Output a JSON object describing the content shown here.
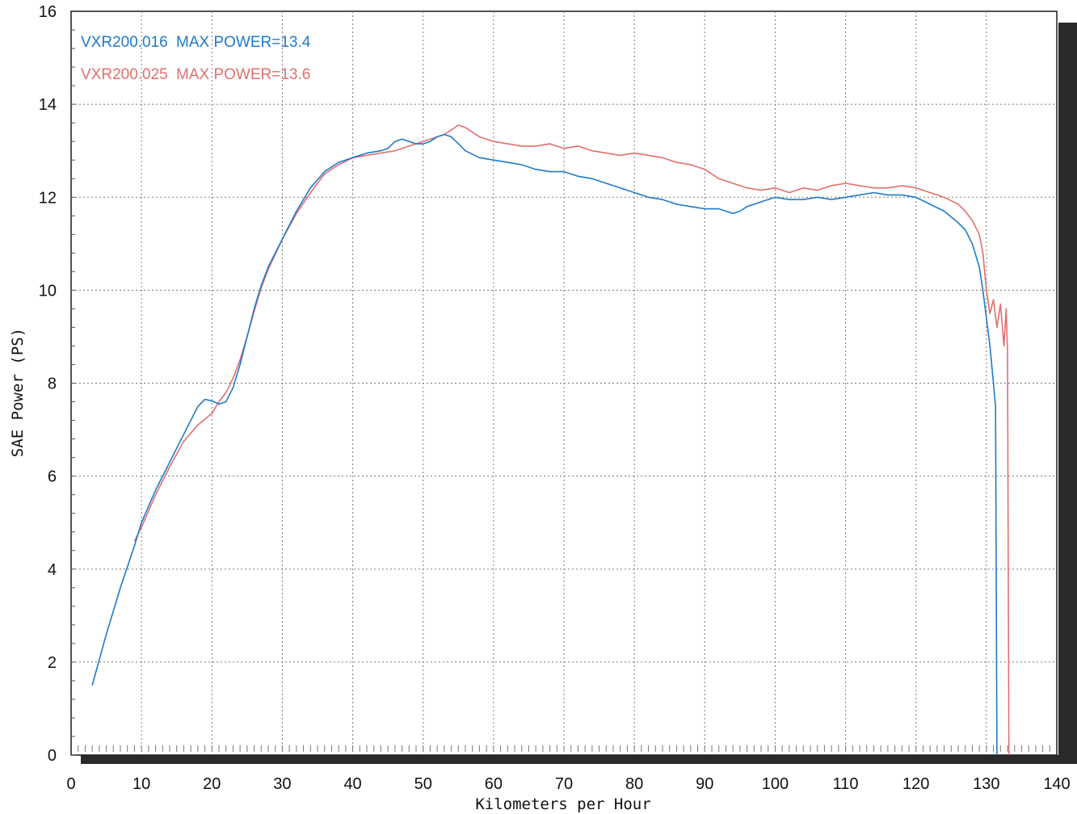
{
  "chart_data": {
    "type": "line",
    "title": "",
    "xlabel": "Kilometers per Hour",
    "ylabel": "SAE Power (PS)",
    "xlim": [
      0,
      140
    ],
    "ylim": [
      0,
      16
    ],
    "xticks": [
      0,
      10,
      20,
      30,
      40,
      50,
      60,
      70,
      80,
      90,
      100,
      110,
      120,
      130,
      140
    ],
    "yticks": [
      0,
      2,
      4,
      6,
      8,
      10,
      12,
      14,
      16
    ],
    "grid": true,
    "legend_position": "top-left",
    "series": [
      {
        "name": "VXR200.016",
        "max_power_label": "MAX POWER=13.4",
        "color": "#1f7ac8",
        "x": [
          3,
          5,
          7,
          9,
          10,
          12,
          14,
          16,
          18,
          19,
          20,
          21,
          22,
          23,
          24,
          25,
          26,
          27,
          28,
          30,
          32,
          34,
          36,
          38,
          40,
          42,
          44,
          45,
          46,
          47,
          48,
          49,
          50,
          51,
          52,
          53,
          54,
          55,
          56,
          58,
          60,
          62,
          64,
          66,
          68,
          70,
          72,
          74,
          76,
          78,
          80,
          82,
          84,
          86,
          88,
          90,
          92,
          94,
          95,
          96,
          98,
          100,
          102,
          104,
          106,
          108,
          110,
          112,
          114,
          116,
          118,
          120,
          122,
          124,
          126,
          127,
          128,
          129,
          129.5,
          130,
          130.5,
          131,
          131.3,
          131.5
        ],
        "y": [
          1.5,
          2.6,
          3.6,
          4.5,
          5.0,
          5.7,
          6.3,
          6.9,
          7.5,
          7.65,
          7.62,
          7.55,
          7.6,
          7.9,
          8.4,
          9.0,
          9.6,
          10.1,
          10.5,
          11.1,
          11.7,
          12.2,
          12.55,
          12.75,
          12.85,
          12.95,
          13.0,
          13.05,
          13.2,
          13.25,
          13.2,
          13.15,
          13.15,
          13.2,
          13.3,
          13.35,
          13.3,
          13.15,
          13.0,
          12.85,
          12.8,
          12.75,
          12.7,
          12.6,
          12.55,
          12.55,
          12.45,
          12.4,
          12.3,
          12.2,
          12.1,
          12.0,
          11.95,
          11.85,
          11.8,
          11.75,
          11.75,
          11.65,
          11.7,
          11.8,
          11.9,
          12.0,
          11.95,
          11.95,
          12.0,
          11.95,
          12.0,
          12.05,
          12.1,
          12.05,
          12.05,
          12.0,
          11.85,
          11.7,
          11.45,
          11.3,
          11.0,
          10.5,
          10.0,
          9.4,
          8.8,
          8.0,
          7.5,
          0.0
        ]
      },
      {
        "name": "VXR200.025",
        "max_power_label": "MAX POWER=13.6",
        "color": "#e0706e",
        "x": [
          9,
          10,
          12,
          14,
          16,
          18,
          20,
          21,
          22,
          23,
          24,
          25,
          26,
          27,
          28,
          30,
          32,
          34,
          36,
          38,
          40,
          42,
          44,
          46,
          48,
          50,
          52,
          53,
          54,
          55,
          56,
          57,
          58,
          60,
          62,
          64,
          66,
          68,
          70,
          72,
          74,
          76,
          78,
          80,
          82,
          84,
          86,
          88,
          90,
          92,
          94,
          96,
          98,
          100,
          102,
          104,
          106,
          108,
          110,
          112,
          114,
          116,
          118,
          120,
          122,
          124,
          126,
          127,
          128,
          129,
          129.5,
          130,
          130.5,
          131,
          131.5,
          132,
          132.5,
          132.8,
          133,
          133.2
        ],
        "y": [
          4.6,
          4.9,
          5.6,
          6.2,
          6.75,
          7.1,
          7.35,
          7.6,
          7.8,
          8.1,
          8.5,
          9.0,
          9.55,
          10.05,
          10.45,
          11.1,
          11.65,
          12.1,
          12.5,
          12.7,
          12.85,
          12.9,
          12.95,
          13.0,
          13.1,
          13.2,
          13.3,
          13.35,
          13.45,
          13.55,
          13.5,
          13.4,
          13.3,
          13.2,
          13.15,
          13.1,
          13.1,
          13.15,
          13.05,
          13.1,
          13.0,
          12.95,
          12.9,
          12.95,
          12.9,
          12.85,
          12.75,
          12.7,
          12.6,
          12.4,
          12.3,
          12.2,
          12.15,
          12.2,
          12.1,
          12.2,
          12.15,
          12.25,
          12.3,
          12.25,
          12.2,
          12.2,
          12.25,
          12.2,
          12.1,
          12.0,
          11.85,
          11.7,
          11.5,
          11.2,
          10.8,
          10.0,
          9.5,
          9.8,
          9.2,
          9.7,
          8.8,
          9.6,
          8.7,
          0.0
        ]
      }
    ]
  }
}
